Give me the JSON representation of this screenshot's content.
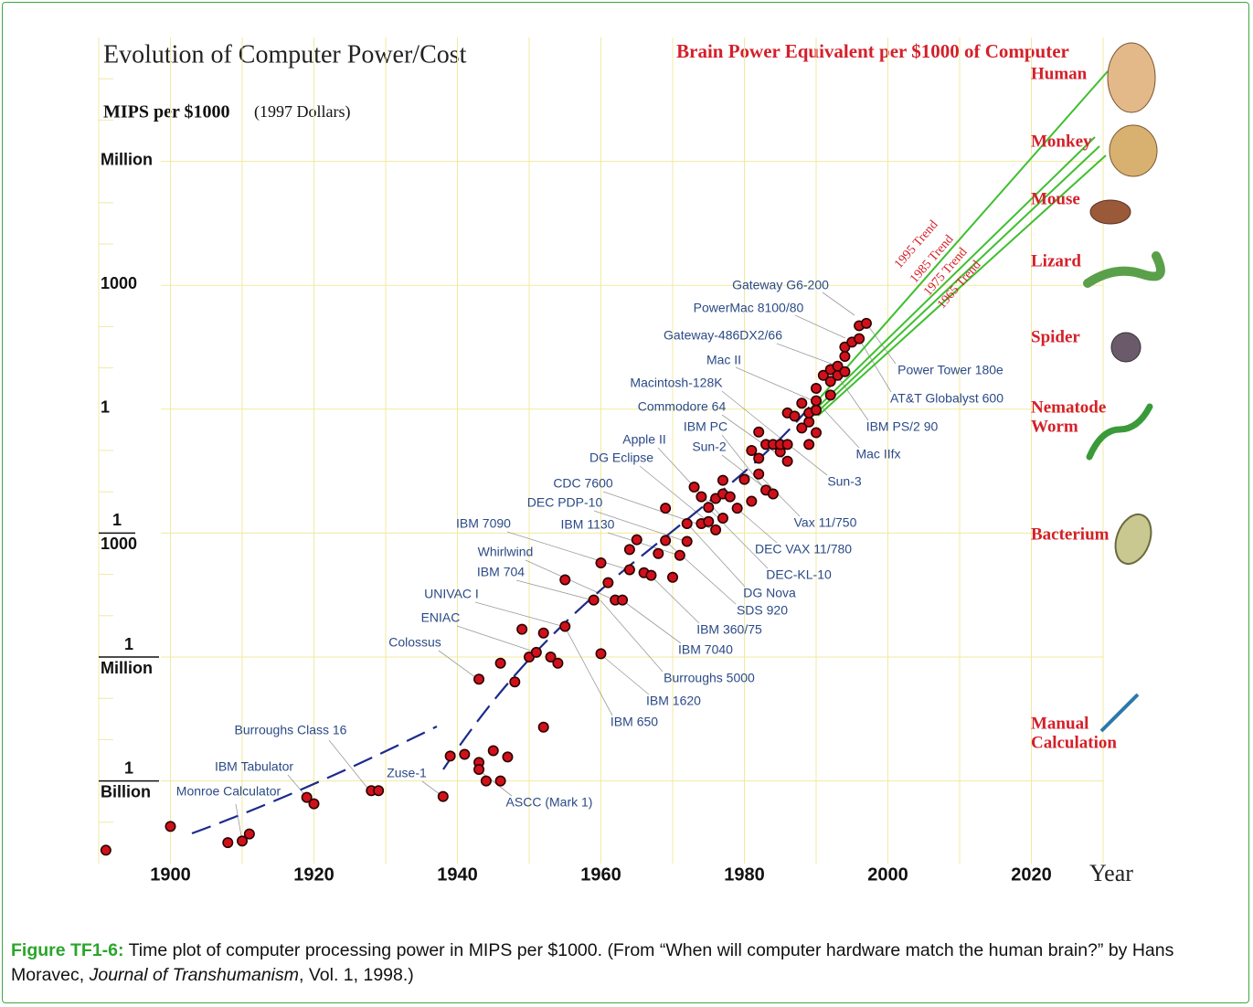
{
  "chart_data": {
    "type": "scatter",
    "title": "Evolution of Computer Power/Cost",
    "y_label": "MIPS per $1000",
    "y_label_note": "(1997 Dollars)",
    "x_label": "Year",
    "right_title": "Brain Power Equivalent per $1000 of Computer",
    "log_y": true,
    "grid": true,
    "color": "#d0111b",
    "xlim": [
      1890,
      2030
    ],
    "ylim": [
      1e-11,
      1000000000.0
    ],
    "xticks": [
      1900,
      1920,
      1940,
      1960,
      1980,
      2000,
      2020
    ],
    "xminorticks": [
      1890,
      1910,
      1930,
      1950,
      1970,
      1990,
      2010,
      2030
    ],
    "yticks": [
      {
        "value": 1000000,
        "label": [
          "Million"
        ]
      },
      {
        "value": 1000,
        "label": [
          "1000"
        ]
      },
      {
        "value": 1,
        "label": [
          "1"
        ]
      },
      {
        "value": 0.001,
        "label": [
          "1",
          "1000"
        ]
      },
      {
        "value": 1e-06,
        "label": [
          "1",
          "Million"
        ]
      },
      {
        "value": 1e-09,
        "label": [
          "1",
          "Billion"
        ]
      }
    ],
    "yminorticks": [
      1e-10,
      1e-08,
      1e-07,
      1e-05,
      0.0001,
      0.01,
      0.1,
      10,
      100,
      10000,
      100000,
      10000000,
      100000000
    ],
    "x": [
      1891,
      1900,
      1908,
      1910,
      1911,
      1919,
      1920,
      1928,
      1929,
      1938,
      1939,
      1941,
      1943,
      1943,
      1944,
      1945,
      1946,
      1947,
      1943,
      1946,
      1948,
      1949,
      1950,
      1951,
      1952,
      1952,
      1953,
      1954,
      1955,
      1955,
      1959,
      1960,
      1960,
      1961,
      1962,
      1963,
      1964,
      1964,
      1965,
      1966,
      1967,
      1968,
      1969,
      1969,
      1970,
      1971,
      1972,
      1972,
      1973,
      1974,
      1974,
      1975,
      1975,
      1976,
      1976,
      1977,
      1977,
      1977,
      1978,
      1979,
      1980,
      1981,
      1982,
      1982,
      1982,
      1983,
      1984,
      1983,
      1984,
      1981,
      1985,
      1985,
      1986,
      1986,
      1986,
      1987,
      1988,
      1988,
      1989,
      1989,
      1989,
      1990,
      1990,
      1990,
      1990,
      1991,
      1992,
      1992,
      1992,
      1993,
      1993,
      1994,
      1994,
      1994,
      1995,
      1996,
      1996,
      1997
    ],
    "values": [
      2.1e-11,
      7.9e-11,
      3.2e-11,
      3.5e-11,
      5.2e-11,
      4e-10,
      2.8e-10,
      5.8e-10,
      5.8e-10,
      4.2e-10,
      4e-09,
      4.4e-09,
      2.8e-09,
      1.9e-09,
      1e-09,
      5.4e-09,
      1e-09,
      3.8e-09,
      2.9e-07,
      7.1e-07,
      2.5e-07,
      4.7e-06,
      1e-06,
      1.3e-06,
      3.8e-06,
      2e-08,
      1e-06,
      7.1e-07,
      5.5e-06,
      7.4e-05,
      2.4e-05,
      0.00019,
      1.2e-06,
      6.3e-05,
      2.4e-05,
      2.4e-05,
      0.00013,
      0.0004,
      0.00069,
      0.00011,
      9.5e-05,
      0.00032,
      0.004,
      0.00066,
      8.5e-05,
      0.00029,
      0.00063,
      0.0017,
      0.013,
      0.0076,
      0.0017,
      0.0019,
      0.0042,
      0.0069,
      0.0012,
      0.0023,
      0.0089,
      0.019,
      0.0076,
      0.004,
      0.02,
      0.0059,
      0.027,
      0.065,
      0.28,
      0.011,
      0.0089,
      0.14,
      0.14,
      0.1,
      0.093,
      0.14,
      0.14,
      0.055,
      0.81,
      0.68,
      1.4,
      0.35,
      0.14,
      0.49,
      0.81,
      0.95,
      0.27,
      1.6,
      3.2,
      6.6,
      2.2,
      4.7,
      9.1,
      6.6,
      11,
      8.1,
      32,
      19,
      42,
      51,
      105,
      120
    ],
    "machine_labels": [
      "Gateway G6-200",
      "PowerMac 8100/80",
      "Gateway-486DX2/66",
      "Mac II",
      "Macintosh-128K",
      "Commodore 64",
      "IBM PC",
      "Sun-2",
      "Apple II",
      "DG Eclipse",
      "CDC 7600",
      "DEC PDP-10",
      "IBM 7090",
      "IBM 1130",
      "Whirlwind",
      "IBM 704",
      "UNIVAC I",
      "ENIAC",
      "Colossus",
      "Burroughs Class 16",
      "IBM Tabulator",
      "Monroe Calculator",
      "Zuse-1",
      "Power Tower 180e",
      "AT&T Globalyst 600",
      "IBM PS/2 90",
      "Mac IIfx",
      "Sun-3",
      "Vax 11/750",
      "DEC VAX 11/780",
      "DEC-KL-10",
      "DG Nova",
      "SDS 920",
      "IBM 360/75",
      "IBM 7040",
      "Burroughs 5000",
      "IBM 1620",
      "IBM 650",
      "ASCC (Mark 1)"
    ],
    "trend_labels": [
      "1995 Trend",
      "1985 Trend",
      "1975 Trend",
      "1965 Trend"
    ],
    "brain_labels": [
      [
        "Human"
      ],
      [
        "Monkey"
      ],
      [
        "Mouse"
      ],
      [
        "Lizard"
      ],
      [
        "Spider"
      ],
      [
        "Nematode",
        "Worm"
      ],
      [
        "Bacterium"
      ],
      [
        "Manual",
        "Calculation"
      ]
    ]
  },
  "caption": {
    "label": "Figure TF1-6:",
    "text_1": " Time plot of computer processing power in MIPS per $1000. (From “When will computer hardware match the human brain?” by Hans Moravec, ",
    "journal": "Journal of Transhumanism",
    "text_2": ", Vol. 1, 1998.)"
  }
}
